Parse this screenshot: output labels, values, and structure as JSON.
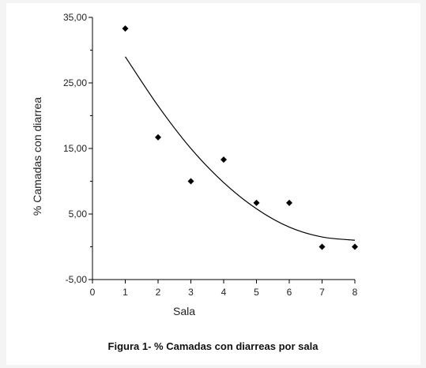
{
  "caption": "Figura 1- % Camadas con diarreas por sala",
  "chart_data": {
    "type": "scatter",
    "title": "",
    "xlabel": "Sala",
    "ylabel": "% Camadas con diarrea",
    "xlim": [
      0,
      8
    ],
    "ylim": [
      -5,
      35
    ],
    "x_ticks": [
      "0",
      "1",
      "2",
      "3",
      "4",
      "5",
      "6",
      "7",
      "8"
    ],
    "y_ticks": [
      "-5,00",
      "5,00",
      "15,00",
      "25,00",
      "35,00"
    ],
    "grid": false,
    "legend": "none",
    "points": [
      {
        "x": 1,
        "y": 33.3
      },
      {
        "x": 2,
        "y": 16.7
      },
      {
        "x": 3,
        "y": 10.0
      },
      {
        "x": 4,
        "y": 13.3
      },
      {
        "x": 5,
        "y": 6.7
      },
      {
        "x": 6,
        "y": 6.7
      },
      {
        "x": 7,
        "y": 0.0
      },
      {
        "x": 8,
        "y": 0.0
      }
    ],
    "trend_line": [
      {
        "x": 1,
        "y": 29.0
      },
      {
        "x": 2,
        "y": 21.5
      },
      {
        "x": 3,
        "y": 15.0
      },
      {
        "x": 4,
        "y": 9.8
      },
      {
        "x": 5,
        "y": 5.8
      },
      {
        "x": 6,
        "y": 3.0
      },
      {
        "x": 7,
        "y": 1.5
      },
      {
        "x": 8,
        "y": 1.0
      }
    ],
    "colors": {
      "marker": "#000000",
      "line": "#000000"
    }
  }
}
